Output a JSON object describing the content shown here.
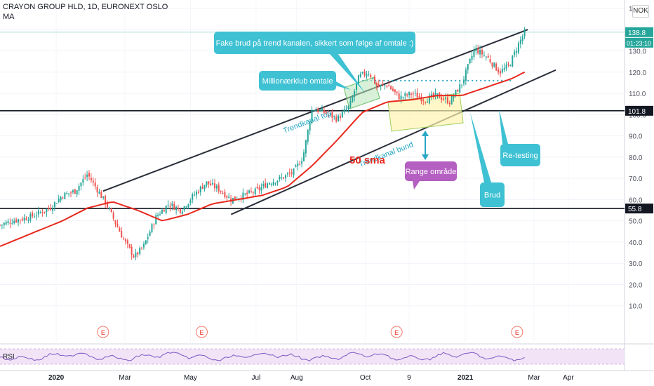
{
  "header": {
    "symbol": "CRAYON GROUP HLD, 1D, EURONEXT OSLO",
    "indicator": "MA"
  },
  "currency": "NOK",
  "colors": {
    "up": "#26a69a",
    "down": "#ef5350",
    "sma": "#e8291e",
    "channel": "#2a2e39",
    "callout": "#3ec1d3",
    "range_callout": "#b45fc1",
    "level_line": "#131722",
    "price_line": "#26a69a",
    "rsi": "#7e57c2",
    "rsi_band": "#f2e3f7"
  },
  "chart_data": {
    "type": "candlestick",
    "y_ticks": [
      "150.0",
      "140.0",
      "130.0",
      "120.0",
      "110.0",
      "100.0",
      "90.0",
      "80.0",
      "70.0",
      "60.0",
      "50.0",
      "40.0",
      "30.0",
      "20.0",
      "10.0"
    ],
    "x_ticks": [
      "2020",
      "Mar",
      "May",
      "Jul",
      "Aug",
      "Oct",
      "9",
      "2021",
      "Mar",
      "Apr"
    ],
    "price_label": "138.8",
    "countdown": "01:23:10",
    "level_labels": [
      "101.8",
      "55.8"
    ],
    "levels": [
      101.8,
      55.8
    ],
    "last_price": 138.8,
    "earnings_marker": "E",
    "rsi_label": "RSI",
    "price_path": [
      [
        0,
        48
      ],
      [
        0.02,
        50
      ],
      [
        0.05,
        52
      ],
      [
        0.08,
        56
      ],
      [
        0.1,
        62
      ],
      [
        0.12,
        64
      ],
      [
        0.14,
        72
      ],
      [
        0.155,
        65
      ],
      [
        0.17,
        58
      ],
      [
        0.18,
        52
      ],
      [
        0.2,
        40
      ],
      [
        0.215,
        33
      ],
      [
        0.23,
        38
      ],
      [
        0.25,
        52
      ],
      [
        0.27,
        58
      ],
      [
        0.29,
        55
      ],
      [
        0.31,
        62
      ],
      [
        0.33,
        68
      ],
      [
        0.35,
        65
      ],
      [
        0.37,
        60
      ],
      [
        0.39,
        62
      ],
      [
        0.41,
        64
      ],
      [
        0.43,
        68
      ],
      [
        0.45,
        70
      ],
      [
        0.47,
        73
      ],
      [
        0.485,
        80
      ],
      [
        0.5,
        103
      ],
      [
        0.52,
        101
      ],
      [
        0.54,
        98
      ],
      [
        0.56,
        104
      ],
      [
        0.575,
        118
      ],
      [
        0.59,
        120
      ],
      [
        0.605,
        113
      ],
      [
        0.62,
        114
      ],
      [
        0.64,
        108
      ],
      [
        0.66,
        110
      ],
      [
        0.68,
        107
      ],
      [
        0.7,
        109
      ],
      [
        0.72,
        106
      ],
      [
        0.74,
        115
      ],
      [
        0.76,
        131
      ],
      [
        0.78,
        127
      ],
      [
        0.8,
        120
      ],
      [
        0.815,
        123
      ],
      [
        0.83,
        133
      ],
      [
        0.84,
        138.8
      ]
    ],
    "sma_path": [
      [
        0,
        38
      ],
      [
        0.05,
        44
      ],
      [
        0.1,
        50
      ],
      [
        0.14,
        56
      ],
      [
        0.18,
        59
      ],
      [
        0.22,
        55
      ],
      [
        0.26,
        50
      ],
      [
        0.3,
        53
      ],
      [
        0.34,
        58
      ],
      [
        0.38,
        60
      ],
      [
        0.42,
        62
      ],
      [
        0.46,
        66
      ],
      [
        0.5,
        76
      ],
      [
        0.54,
        88
      ],
      [
        0.58,
        101
      ],
      [
        0.62,
        106
      ],
      [
        0.66,
        107
      ],
      [
        0.7,
        109
      ],
      [
        0.74,
        109
      ],
      [
        0.78,
        113
      ],
      [
        0.82,
        117
      ],
      [
        0.84,
        120
      ]
    ],
    "channel_top": [
      [
        0.165,
        64
      ],
      [
        0.845,
        140
      ]
    ],
    "channel_bottom": [
      [
        0.37,
        53
      ],
      [
        0.89,
        121
      ]
    ],
    "dotted_resistance": [
      [
        0.58,
        116
      ],
      [
        0.82,
        116
      ]
    ]
  },
  "annotations": {
    "fake_break": "Fake brud på trend kanalen, sikkert som følge af omtale :)",
    "millionaer": "Millionærklub omtale",
    "trend_top": "Trendkanal top",
    "sma50": "50 sma",
    "trend_bottom": "Trendkanal bund",
    "range": "Range område",
    "brud": "Brud",
    "retest": "Re-testing"
  }
}
